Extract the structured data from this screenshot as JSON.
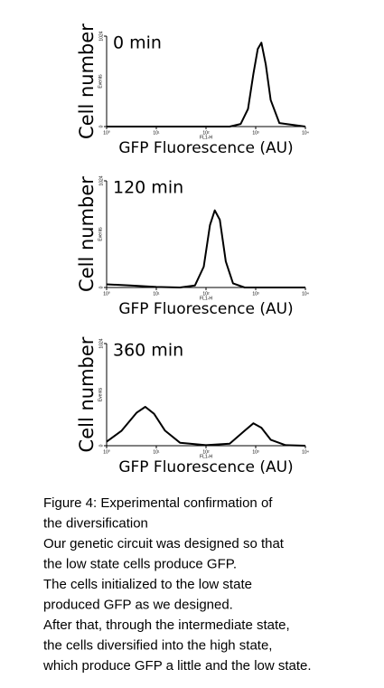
{
  "chart_data": [
    {
      "type": "line",
      "label": "0 min",
      "ylabel": "Cell number",
      "ylabel_small": "Events",
      "xlabel_small": "FL1-H",
      "xlabel": "GFP Fluorescence (AU)",
      "xscale": "log",
      "color": "#000000",
      "x": [
        1,
        300,
        500,
        700,
        900,
        1100,
        1300,
        1600,
        2000,
        3000,
        10000
      ],
      "values": [
        0,
        0,
        30,
        200,
        600,
        880,
        950,
        700,
        300,
        40,
        0
      ],
      "xlim": [
        1,
        10000
      ],
      "ylim": [
        0,
        1024
      ],
      "xticks": [
        {
          "value": 1,
          "label": "10⁰"
        },
        {
          "value": 10,
          "label": "10¹"
        },
        {
          "value": 100,
          "label": "10²"
        },
        {
          "value": 1000,
          "label": "10³"
        },
        {
          "value": 10000,
          "label": "10⁴"
        }
      ],
      "yticks": [
        0,
        1024
      ]
    },
    {
      "type": "line",
      "label": "120 min",
      "ylabel": "Cell number",
      "ylabel_small": "Events",
      "xlabel_small": "FL1-H",
      "xlabel": "GFP Fluorescence (AU)",
      "xscale": "log",
      "color": "#000000",
      "x": [
        1,
        3,
        10,
        30,
        60,
        90,
        120,
        150,
        190,
        250,
        350,
        600,
        10000
      ],
      "values": [
        30,
        20,
        5,
        0,
        20,
        200,
        600,
        740,
        650,
        250,
        40,
        0,
        0
      ],
      "xlim": [
        1,
        10000
      ],
      "ylim": [
        0,
        1024
      ],
      "xticks": [
        {
          "value": 1,
          "label": "10⁰"
        },
        {
          "value": 10,
          "label": "10¹"
        },
        {
          "value": 100,
          "label": "10²"
        },
        {
          "value": 1000,
          "label": "10³"
        },
        {
          "value": 10000,
          "label": "10⁴"
        }
      ],
      "yticks": [
        0,
        1024
      ]
    },
    {
      "type": "line",
      "label": "360 min",
      "ylabel": "Cell number",
      "ylabel_small": "Events",
      "xlabel_small": "FL1-H",
      "xlabel": "GFP Fluorescence (AU)",
      "xscale": "log",
      "color": "#000000",
      "x": [
        1,
        2,
        4,
        6,
        9,
        15,
        30,
        100,
        300,
        600,
        900,
        1300,
        2000,
        4000,
        10000
      ],
      "values": [
        40,
        150,
        330,
        390,
        320,
        150,
        30,
        5,
        20,
        150,
        225,
        180,
        60,
        5,
        0
      ],
      "xlim": [
        1,
        10000
      ],
      "ylim": [
        0,
        1024
      ],
      "xticks": [
        {
          "value": 1,
          "label": "10⁰"
        },
        {
          "value": 10,
          "label": "10¹"
        },
        {
          "value": 100,
          "label": "10²"
        },
        {
          "value": 1000,
          "label": "10³"
        },
        {
          "value": 10000,
          "label": "10⁴"
        }
      ],
      "yticks": [
        0,
        1024
      ]
    }
  ],
  "caption": {
    "lines": [
      "Figure 4: Experimental confirmation of",
      "the diversification",
      "Our genetic circuit was designed so that",
      "the low state cells produce GFP.",
      "The cells initialized to the low state",
      "produced GFP as we designed.",
      "After that, through the intermediate state,",
      "the cells diversified into the high state,",
      "which produce GFP a little and the low state."
    ]
  }
}
